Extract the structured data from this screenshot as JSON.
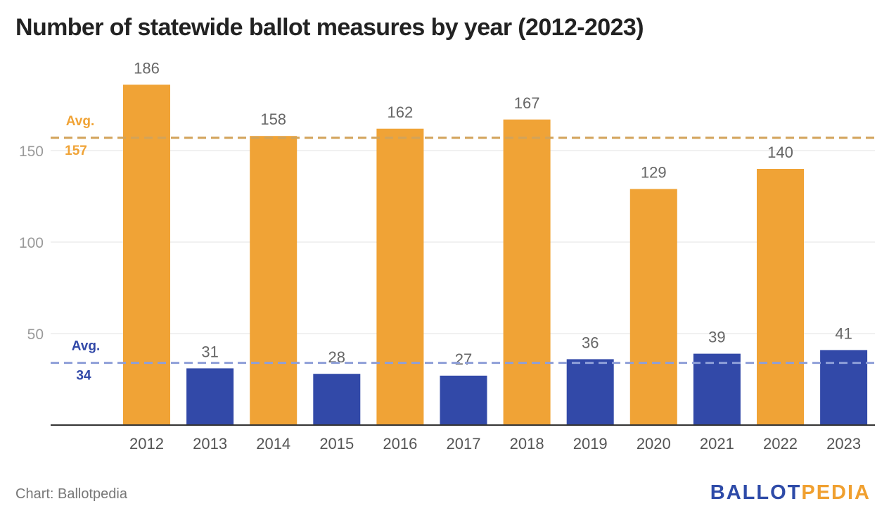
{
  "header": {
    "title": "Number of statewide ballot measures by year (2012-2023)"
  },
  "footer": {
    "credit": "Chart: Ballotpedia",
    "logo_part1": "BALLOT",
    "logo_part2": "PEDIA"
  },
  "colors": {
    "even_year": "#F0A336",
    "odd_year": "#3249A8",
    "even_avg_line": "#D2A35A",
    "odd_avg_line": "#8E9FD8",
    "gridline": "#E3E3E3",
    "axis": "#333333",
    "tick_text": "#9A9A9A",
    "value_text": "#666666",
    "year_text": "#555555"
  },
  "chart_data": {
    "type": "bar",
    "title": "Number of statewide ballot measures by year (2012-2023)",
    "xlabel": "",
    "ylabel": "",
    "categories": [
      "2012",
      "2013",
      "2014",
      "2015",
      "2016",
      "2017",
      "2018",
      "2019",
      "2020",
      "2021",
      "2022",
      "2023"
    ],
    "values": [
      186,
      31,
      158,
      28,
      162,
      27,
      167,
      36,
      129,
      39,
      140,
      41
    ],
    "data_labels": [
      "186",
      "31",
      "158",
      "28",
      "162",
      "27",
      "167",
      "36",
      "129",
      "39",
      "140",
      "41"
    ],
    "bar_groups": [
      "even",
      "odd",
      "even",
      "odd",
      "even",
      "odd",
      "even",
      "odd",
      "even",
      "odd",
      "even",
      "odd"
    ],
    "ylim": [
      0,
      186
    ],
    "yticks": [
      50,
      100,
      150
    ],
    "grid": true,
    "legend": "none",
    "reference_lines": [
      {
        "group": "even",
        "value": 157,
        "label_line1": "Avg.",
        "label_line2": "157"
      },
      {
        "group": "odd",
        "value": 34,
        "label_line1": "Avg.",
        "label_line2": "34"
      }
    ]
  }
}
